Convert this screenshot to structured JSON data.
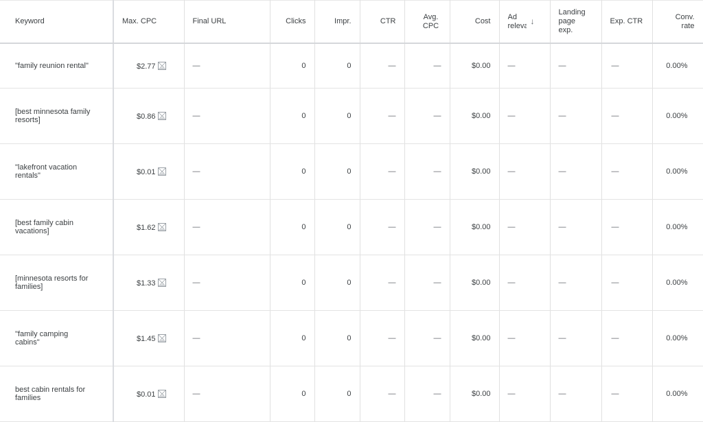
{
  "columns": {
    "keyword": "Keyword",
    "max_cpc": "Max. CPC",
    "final_url": "Final URL",
    "clicks": "Clicks",
    "impr": "Impr.",
    "ctr": "CTR",
    "avg_cpc": "Avg. CPC",
    "cost": "Cost",
    "ad_relevance": "Ad relevance",
    "landing_page_exp": "Landing page exp.",
    "exp_ctr": "Exp. CTR",
    "conv_rate": "Conv. rate"
  },
  "sort": {
    "column": "ad_relevance",
    "direction": "descending",
    "icon": "arrow-down-icon"
  },
  "rows": [
    {
      "keyword": "\"family reunion rental\"",
      "max_cpc": "$2.77",
      "final_url": "—",
      "clicks": "0",
      "impr": "0",
      "ctr": "—",
      "avg_cpc": "—",
      "cost": "$0.00",
      "ad_relevance": "—",
      "landing_page_exp": "—",
      "exp_ctr": "—",
      "conv_rate": "0.00%"
    },
    {
      "keyword": "[best minnesota family resorts]",
      "max_cpc": "$0.86",
      "final_url": "—",
      "clicks": "0",
      "impr": "0",
      "ctr": "—",
      "avg_cpc": "—",
      "cost": "$0.00",
      "ad_relevance": "—",
      "landing_page_exp": "—",
      "exp_ctr": "—",
      "conv_rate": "0.00%"
    },
    {
      "keyword": "\"lakefront vacation rentals\"",
      "max_cpc": "$0.01",
      "final_url": "—",
      "clicks": "0",
      "impr": "0",
      "ctr": "—",
      "avg_cpc": "—",
      "cost": "$0.00",
      "ad_relevance": "—",
      "landing_page_exp": "—",
      "exp_ctr": "—",
      "conv_rate": "0.00%"
    },
    {
      "keyword": "[best family cabin vacations]",
      "max_cpc": "$1.62",
      "final_url": "—",
      "clicks": "0",
      "impr": "0",
      "ctr": "—",
      "avg_cpc": "—",
      "cost": "$0.00",
      "ad_relevance": "—",
      "landing_page_exp": "—",
      "exp_ctr": "—",
      "conv_rate": "0.00%"
    },
    {
      "keyword": "[minnesota resorts for families]",
      "max_cpc": "$1.33",
      "final_url": "—",
      "clicks": "0",
      "impr": "0",
      "ctr": "—",
      "avg_cpc": "—",
      "cost": "$0.00",
      "ad_relevance": "—",
      "landing_page_exp": "—",
      "exp_ctr": "—",
      "conv_rate": "0.00%"
    },
    {
      "keyword": "\"family camping cabins\"",
      "max_cpc": "$1.45",
      "final_url": "—",
      "clicks": "0",
      "impr": "0",
      "ctr": "—",
      "avg_cpc": "—",
      "cost": "$0.00",
      "ad_relevance": "—",
      "landing_page_exp": "—",
      "exp_ctr": "—",
      "conv_rate": "0.00%"
    },
    {
      "keyword": "best cabin rentals for families",
      "max_cpc": "$0.01",
      "final_url": "—",
      "clicks": "0",
      "impr": "0",
      "ctr": "—",
      "avg_cpc": "—",
      "cost": "$0.00",
      "ad_relevance": "—",
      "landing_page_exp": "—",
      "exp_ctr": "—",
      "conv_rate": "0.00%"
    }
  ],
  "icons": {
    "max_cpc_status": "image-disapproved-icon"
  }
}
